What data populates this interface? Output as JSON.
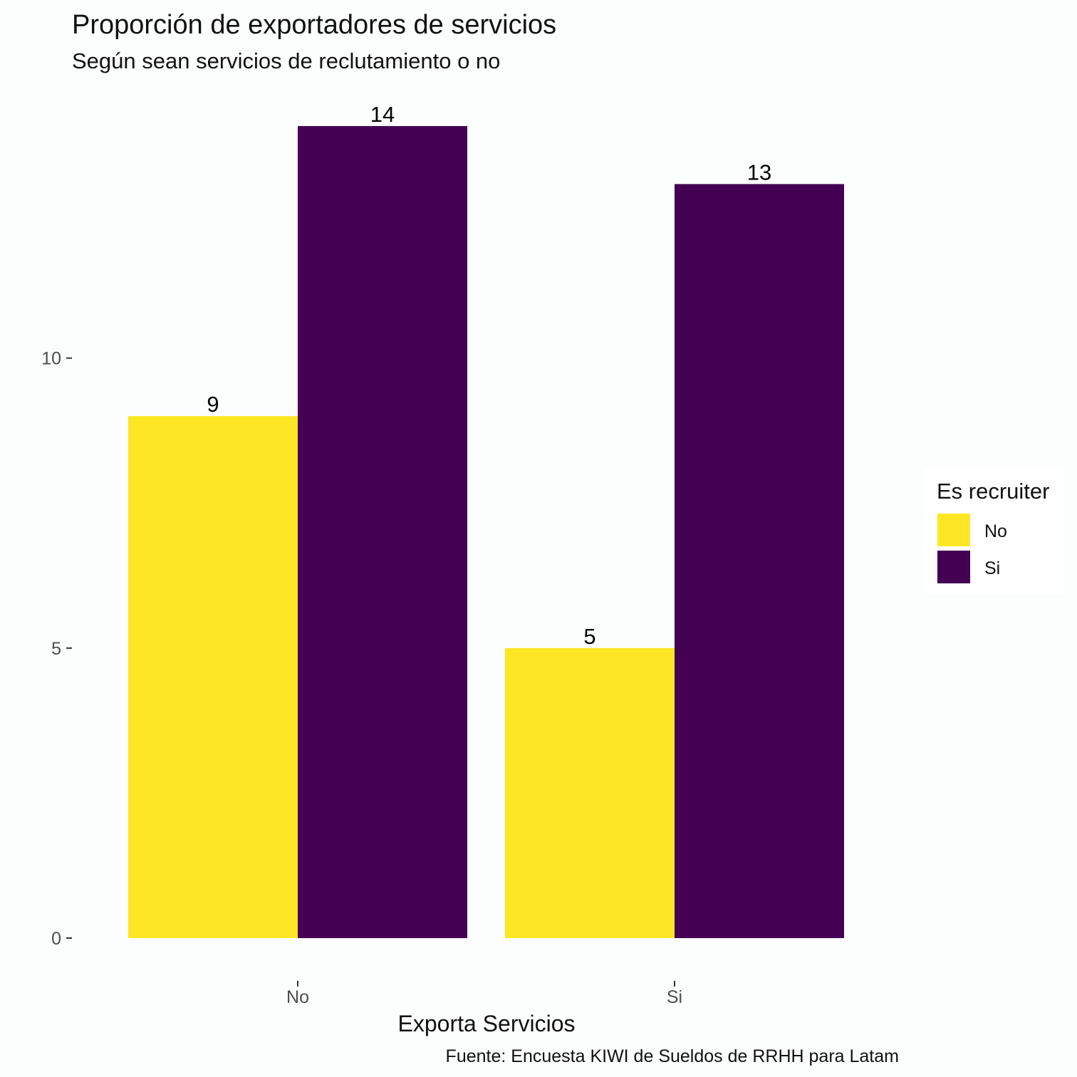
{
  "chart_data": {
    "type": "bar",
    "title": "Proporción de exportadores de servicios",
    "subtitle": "Según sean servicios de reclutamiento o no",
    "xlabel": "Exporta Servicios",
    "ylabel": "",
    "caption": "Fuente: Encuesta KIWI de Sueldos de RRHH para Latam",
    "categories": [
      "No",
      "Si"
    ],
    "series": [
      {
        "name": "No",
        "color": "#fde725",
        "values": [
          9,
          5
        ]
      },
      {
        "name": "Si",
        "color": "#440154",
        "values": [
          14,
          13
        ]
      }
    ],
    "ylim": [
      0,
      14
    ],
    "y_ticks": [
      0,
      5,
      10
    ],
    "data_labels": true,
    "grid": false,
    "legend": {
      "title": "Es recruiter",
      "position": "right",
      "entries": [
        "No",
        "Si"
      ]
    }
  }
}
